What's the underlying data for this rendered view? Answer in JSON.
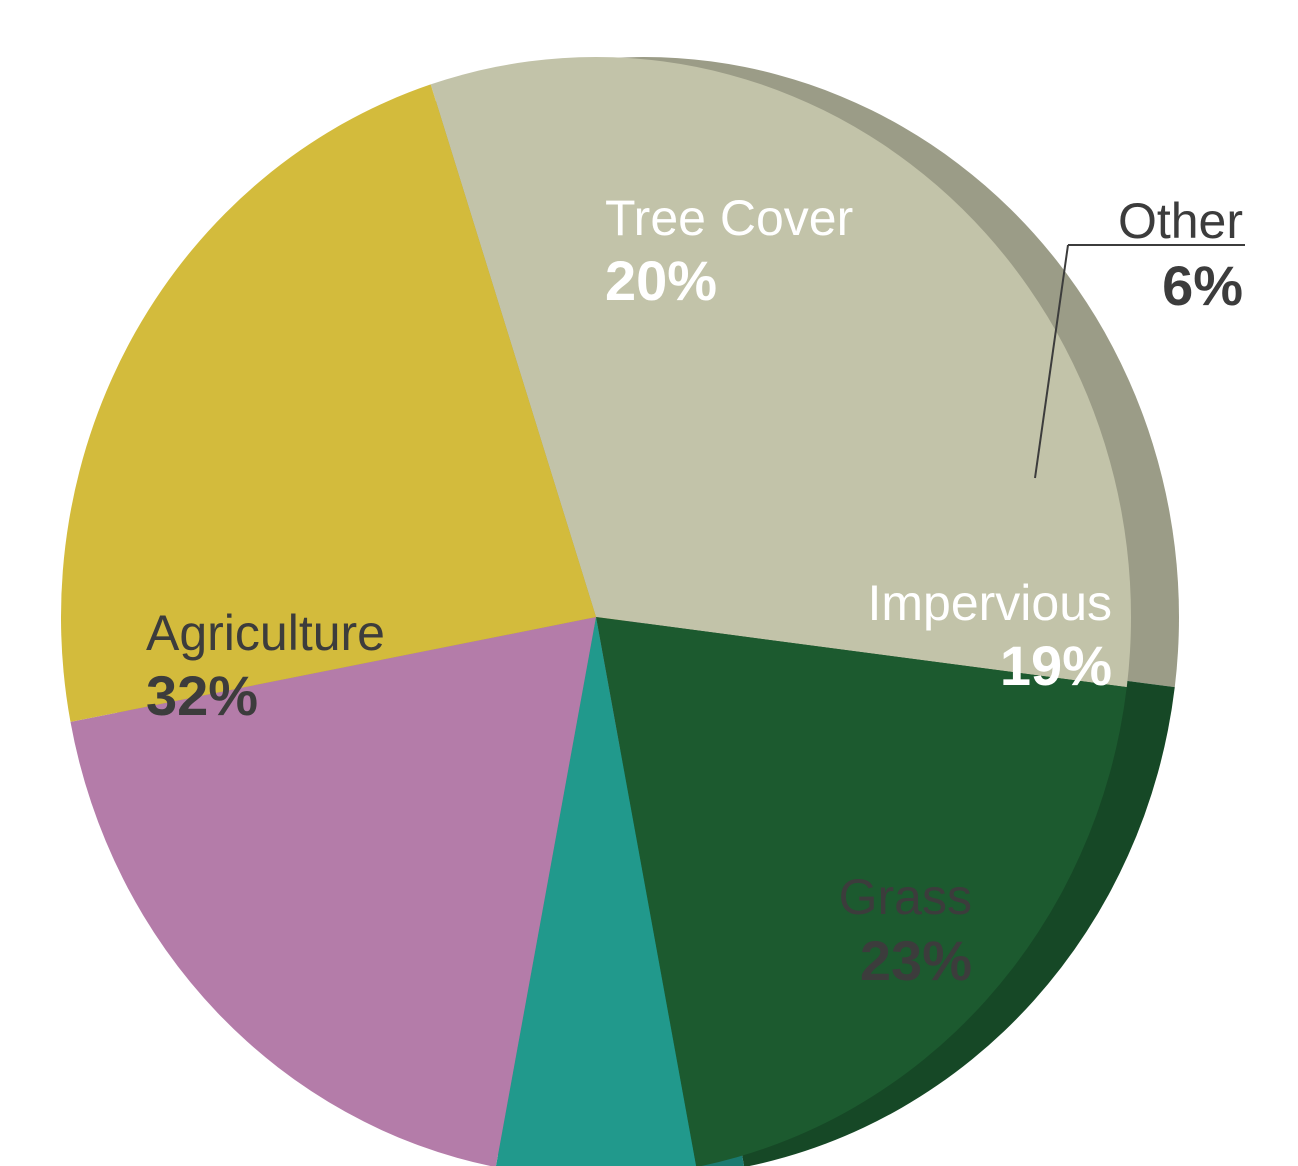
{
  "chart_data": {
    "type": "pie",
    "slices": [
      {
        "label": "Agriculture",
        "value": 32,
        "value_label": "32%",
        "color": "#C2C3A9",
        "text_color": "#3C3C3C"
      },
      {
        "label": "Tree Cover",
        "value": 20,
        "value_label": "20%",
        "color": "#1C5A2F",
        "text_color": "#FFFFFF"
      },
      {
        "label": "Other",
        "value": 6,
        "value_label": "6%",
        "color": "#21998C",
        "text_color": "#3C3C3C"
      },
      {
        "label": "Impervious",
        "value": 19,
        "value_label": "19%",
        "color": "#B47CA9",
        "text_color": "#FFFFFF"
      },
      {
        "label": "Grass",
        "value": 23,
        "value_label": "23%",
        "color": "#D3BB3C",
        "text_color": "#3C3C3C"
      }
    ]
  }
}
